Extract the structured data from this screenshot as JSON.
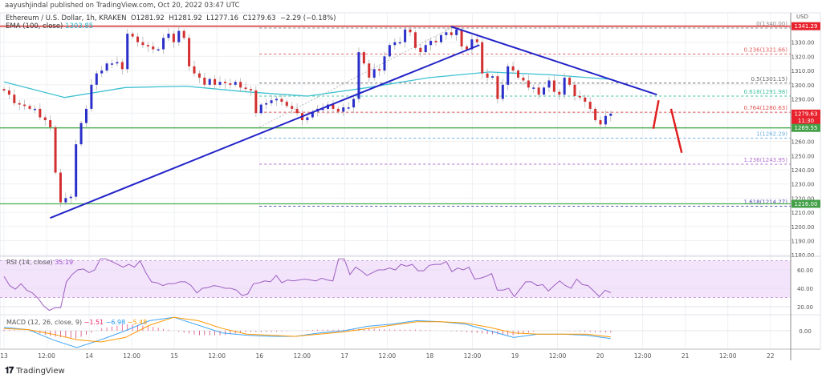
{
  "header": {
    "publisher": "aayushjindal published on TradingView.com, Oct 20, 2022 03:47 UTC"
  },
  "legend": {
    "symbol": "Ethereum / U.S. Dollar, 1h, KRAKEN",
    "open": "O1281.92",
    "high": "H1281.92",
    "low": "L1277.16",
    "close": "C1279.63",
    "change": "−2.29 (−0.18%)",
    "ema_label": "EMA (100, close)",
    "ema_value": "1303.85"
  },
  "rsi_legend": {
    "label": "RSI (14, close)",
    "value": "35.19"
  },
  "macd_legend": {
    "label": "MACD (12, 26, close, 9)",
    "hist": "−1.51",
    "macd": "−6.98",
    "signal": "−5.48"
  },
  "footer": {
    "brand": "TradingView",
    "logo_text": "17"
  },
  "colors": {
    "up": "#2a2fc9",
    "down": "#d32f2f",
    "ema": "#3fc1d0",
    "trendline": "#2323c8",
    "resistance": "#e05a5a",
    "support": "#4caf50",
    "rsi": "#9c5fc0",
    "rsi_band": "#f3e4fc",
    "macd": "#42a5f5",
    "signal": "#ff9800",
    "hist": "#e91e63",
    "arrow": "#e02020"
  },
  "chart_data": [
    {
      "type": "candlestick",
      "title": "Ethereum / U.S. Dollar, 1h, KRAKEN",
      "ylabel": "USD",
      "ylim": [
        1178,
        1350
      ],
      "first_bar": "Oct 13 00:00",
      "last_bar": "Oct 20 03:00",
      "closes": [
        1296,
        1293,
        1287,
        1286,
        1285,
        1283,
        1283,
        1277,
        1275,
        1270,
        1238,
        1217,
        1220,
        1221,
        1258,
        1273,
        1283,
        1300,
        1308,
        1310,
        1315,
        1315,
        1316,
        1311,
        1336,
        1334,
        1330,
        1328,
        1327,
        1325,
        1325,
        1333,
        1336,
        1330,
        1338,
        1333,
        1313,
        1308,
        1305,
        1300,
        1304,
        1300,
        1302,
        1301,
        1300,
        1302,
        1298,
        1297,
        1296,
        1280,
        1286,
        1287,
        1289,
        1290,
        1288,
        1285,
        1283,
        1280,
        1275,
        1277,
        1281,
        1283,
        1283,
        1286,
        1283,
        1281,
        1284,
        1284,
        1290,
        1323,
        1315,
        1305,
        1311,
        1310,
        1320,
        1328,
        1330,
        1330,
        1339,
        1337,
        1326,
        1323,
        1328,
        1331,
        1330,
        1335,
        1337,
        1335,
        1339,
        1327,
        1325,
        1332,
        1330,
        1308,
        1305,
        1306,
        1290,
        1300,
        1313,
        1310,
        1305,
        1303,
        1298,
        1298,
        1293,
        1298,
        1303,
        1295,
        1293,
        1305,
        1300,
        1292,
        1291,
        1288,
        1283,
        1275,
        1272,
        1278,
        1279.63
      ],
      "ema": {
        "name": "EMA (100, close)",
        "values": [
          1302,
          1291,
          1298,
          1299,
          1295,
          1292,
          1298,
          1305,
          1309,
          1307,
          1303.85
        ]
      },
      "x_ticks": [
        "13",
        "12:00",
        "14",
        "12:00",
        "15",
        "12:00",
        "16",
        "12:00",
        "17",
        "12:00",
        "18",
        "12:00",
        "19",
        "12:00",
        "20",
        "12:00",
        "21",
        "12:00",
        "22"
      ],
      "x_tick_times": [
        "Oct 13 00:00",
        "Oct 13 12:00",
        "Oct 14 00:00",
        "Oct 14 12:00",
        "Oct 15 00:00",
        "Oct 15 12:00",
        "Oct 16 00:00",
        "Oct 16 12:00",
        "Oct 17 00:00",
        "Oct 17 12:00",
        "Oct 18 00:00",
        "Oct 18 12:00",
        "Oct 19 00:00",
        "Oct 19 12:00",
        "Oct 20 00:00",
        "Oct 20 12:00",
        "Oct 21 00:00",
        "Oct 21 12:00",
        "Oct 22 00:00"
      ],
      "y_ticks": [
        "1330.00",
        "1320.00",
        "1310.00",
        "1300.00",
        "1290.00",
        "1260.00",
        "1250.00",
        "1240.00",
        "1230.00",
        "1220.00",
        "1210.00",
        "1200.00",
        "1190.00",
        "1180.00"
      ],
      "price_labels": [
        {
          "text": "1341.29",
          "value": 1341.29,
          "kind": "resistance"
        },
        {
          "text": "1279.63",
          "sub": "11:30",
          "value": 1279.63,
          "kind": "last"
        },
        {
          "text": "1269.55",
          "value": 1269.55,
          "kind": "support"
        },
        {
          "text": "1216.00",
          "value": 1216.0,
          "kind": "support"
        }
      ],
      "horizontal_lines": [
        {
          "value": 1341.29,
          "kind": "resistance"
        },
        {
          "value": 1269.55,
          "kind": "support"
        },
        {
          "value": 1216.0,
          "kind": "support"
        }
      ],
      "fib_levels": [
        {
          "label": "0(1340.00)",
          "value": 1340.0,
          "color": "#8a8a8a"
        },
        {
          "label": "0.236(1321.66)",
          "value": 1321.66,
          "color": "#e06060"
        },
        {
          "label": "0.5(1301.15)",
          "value": 1301.15,
          "color": "#666666"
        },
        {
          "label": "0.618(1291.98)",
          "value": 1291.98,
          "color": "#40c0a0"
        },
        {
          "label": "0.764(1280.63)",
          "value": 1280.63,
          "color": "#e05050"
        },
        {
          "label": "1(1262.29)",
          "value": 1262.29,
          "color": "#70b0e0"
        },
        {
          "label": "1.236(1243.95)",
          "value": 1243.95,
          "color": "#b070d0"
        },
        {
          "label": "1.618(1214.27)",
          "value": 1214.27,
          "color": "#5050b0"
        }
      ],
      "fib_start": "Oct 16 00:00",
      "trendlines": [
        {
          "from": [
            "Oct 13 13:00",
            1206
          ],
          "to": [
            "Oct 18 14:00",
            1328
          ],
          "kind": "support"
        },
        {
          "from": [
            "Oct 18 06:00",
            1341
          ],
          "to": [
            "Oct 20 16:00",
            1293
          ],
          "kind": "resistance"
        }
      ],
      "arrows": [
        {
          "from": [
            "Oct 20 15:00",
            1269
          ],
          "to": [
            "Oct 20 16:30",
            1289
          ]
        },
        {
          "from": [
            "Oct 20 20:00",
            1283
          ],
          "to": [
            "Oct 20 23:00",
            1252
          ]
        }
      ]
    },
    {
      "type": "line",
      "title": "RSI (14, close)",
      "ylim": [
        0,
        100
      ],
      "y_ticks": [
        "60.00",
        "40.00",
        "20.00"
      ],
      "band": [
        30,
        70
      ],
      "first_bar": "Oct 13 00:00",
      "last_bar": "Oct 20 03:00",
      "values": [
        53,
        43,
        39,
        45,
        38,
        35,
        29,
        21,
        16,
        19,
        19,
        47,
        55,
        60,
        61,
        57,
        60,
        72,
        72,
        69,
        66,
        63,
        66,
        63,
        70,
        57,
        47,
        46,
        43,
        45,
        45,
        47,
        47,
        43,
        35,
        40,
        41,
        43,
        42,
        40,
        40,
        38,
        32,
        34,
        45,
        46,
        48,
        47,
        54,
        46,
        49,
        48,
        49,
        50,
        49,
        48,
        51,
        49,
        48,
        72,
        72,
        55,
        63,
        59,
        54,
        57,
        60,
        60,
        62,
        60,
        66,
        64,
        66,
        59,
        59,
        65,
        66,
        66,
        69,
        58,
        62,
        60,
        63,
        50,
        51,
        53,
        56,
        38,
        38,
        40,
        31,
        39,
        47,
        47,
        43,
        44,
        37,
        43,
        48,
        43,
        40,
        50,
        44,
        43,
        37,
        31,
        38,
        35.19
      ]
    },
    {
      "type": "line",
      "title": "MACD (12, 26, close, 9)",
      "y_ticks": [
        "0.00"
      ],
      "ylim": [
        -20,
        20
      ],
      "first_bar": "Oct 13 00:00",
      "last_bar": "Oct 20 03:00",
      "series": [
        {
          "name": "MACD",
          "values": [
            3,
            1,
            -8,
            -15,
            -8,
            0,
            9,
            12,
            5,
            -2,
            -4,
            -5,
            -5,
            -2,
            0,
            4,
            6,
            9,
            8,
            6,
            0,
            -6,
            -3,
            -3,
            -4,
            -6.98
          ]
        },
        {
          "name": "Signal",
          "values": [
            2,
            1,
            -3,
            -8,
            -10,
            -6,
            5,
            12,
            9,
            2,
            -3,
            -4,
            -5,
            -3,
            -1,
            2,
            5,
            8,
            8,
            7,
            3,
            -2,
            -3,
            -3,
            -3,
            -5.48
          ]
        }
      ]
    }
  ]
}
